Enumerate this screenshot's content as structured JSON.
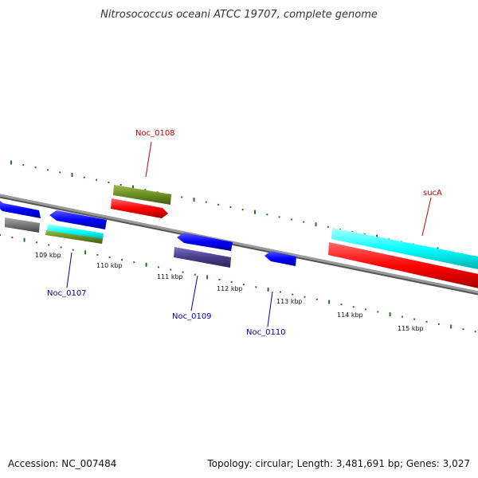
{
  "header": {
    "title": "Nitrosococcus oceani ATCC 19707, complete genome"
  },
  "footer": {
    "accession": "Accession: NC_007484",
    "summary": "Topology: circular; Length: 3,481,691 bp; Genes: 3,027"
  },
  "scale": {
    "ticks": [
      "109 kbp",
      "110 kbp",
      "111 kbp",
      "112 kbp",
      "113 kbp",
      "114 kbp",
      "115 kbp"
    ]
  },
  "genes": [
    {
      "name": "Noc_0107",
      "color": "#0000aa"
    },
    {
      "name": "Noc_0108",
      "color": "#cc0000"
    },
    {
      "name": "Noc_0109",
      "color": "#0000aa"
    },
    {
      "name": "Noc_0110",
      "color": "#0000aa"
    },
    {
      "name": "sucA",
      "color": "#cc0000"
    }
  ],
  "colors": {
    "backbone": "#888888",
    "dots": "#227722",
    "cds_forward": "#ff0000",
    "cds_reverse": "#0000ff",
    "rna": "#00ffff",
    "olive": "#6b8e23",
    "slate": "#483d8b",
    "gray": "#777777"
  }
}
